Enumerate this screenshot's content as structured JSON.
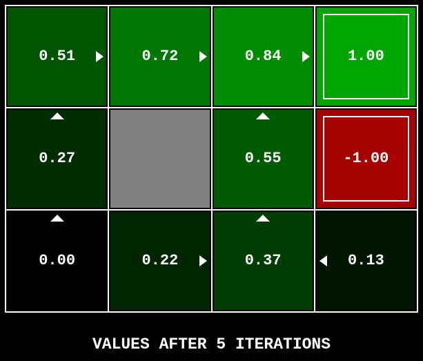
{
  "title": "VALUES AFTER 5 ITERATIONS",
  "colors": {
    "background": "#000000",
    "grid_line": "#ffffff",
    "text": "#ffffff",
    "wall": "#808080",
    "positive_terminal": "#00a600",
    "negative_terminal": "#a60000"
  },
  "grid": {
    "rows": 3,
    "cols": 4,
    "cells": [
      {
        "row": 0,
        "col": 0,
        "kind": "state",
        "value": "0.51",
        "bg": "#005500",
        "arrow": "right"
      },
      {
        "row": 0,
        "col": 1,
        "kind": "state",
        "value": "0.72",
        "bg": "#007700",
        "arrow": "right"
      },
      {
        "row": 0,
        "col": 2,
        "kind": "state",
        "value": "0.84",
        "bg": "#008b00",
        "arrow": "right"
      },
      {
        "row": 0,
        "col": 3,
        "kind": "terminal",
        "value": "1.00",
        "bg": "#00a600",
        "arrow": null
      },
      {
        "row": 1,
        "col": 0,
        "kind": "state",
        "value": "0.27",
        "bg": "#002d00",
        "arrow": "up"
      },
      {
        "row": 1,
        "col": 1,
        "kind": "wall",
        "value": null,
        "bg": "#808080",
        "arrow": null
      },
      {
        "row": 1,
        "col": 2,
        "kind": "state",
        "value": "0.55",
        "bg": "#005b00",
        "arrow": "up"
      },
      {
        "row": 1,
        "col": 3,
        "kind": "terminal",
        "value": "-1.00",
        "bg": "#a60000",
        "arrow": null
      },
      {
        "row": 2,
        "col": 0,
        "kind": "state",
        "value": "0.00",
        "bg": "#000000",
        "arrow": "up"
      },
      {
        "row": 2,
        "col": 1,
        "kind": "state",
        "value": "0.22",
        "bg": "#002400",
        "arrow": "right"
      },
      {
        "row": 2,
        "col": 2,
        "kind": "state",
        "value": "0.37",
        "bg": "#003d00",
        "arrow": "up"
      },
      {
        "row": 2,
        "col": 3,
        "kind": "state",
        "value": "0.13",
        "bg": "#001500",
        "arrow": "left"
      }
    ]
  }
}
